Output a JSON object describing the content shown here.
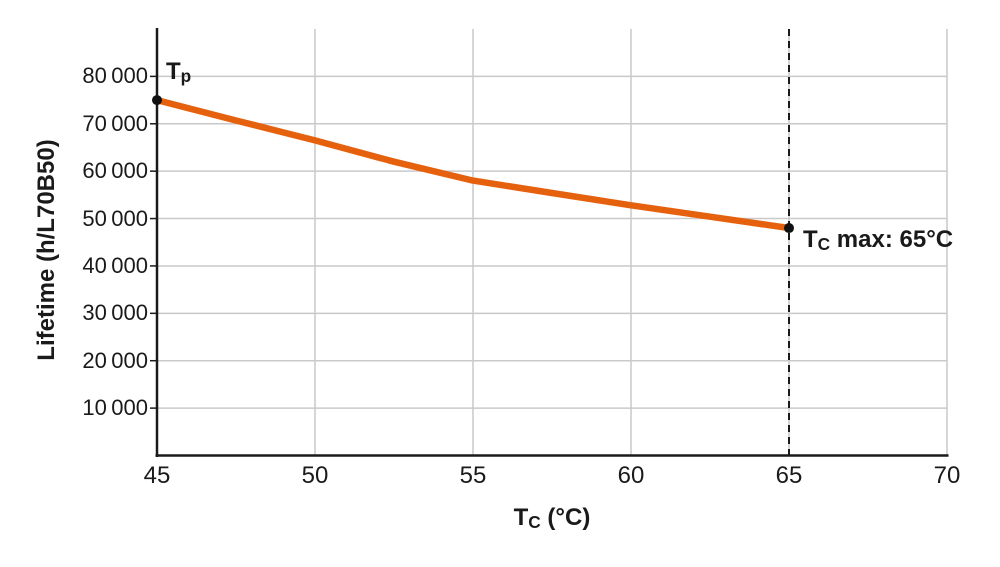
{
  "figure": {
    "background": "#ffffff"
  },
  "colors": {
    "grid": "#c9c9c9",
    "axis": "#1a1a1a",
    "text": "#1a1a1a",
    "marker": "#111111",
    "line": "#E6610E",
    "reference": "#1a1a1a"
  },
  "chart_data": {
    "type": "line",
    "title": "",
    "xlabel": {
      "pre": "T",
      "sub": "C",
      "post": " (°C)"
    },
    "ylabel": "Lifetime (h/L70B50)",
    "xlim": [
      45,
      70
    ],
    "ylim": [
      0,
      90000
    ],
    "grid": true,
    "legend": "none",
    "x_ticks": [
      {
        "value": 45,
        "label": "45"
      },
      {
        "value": 50,
        "label": "50"
      },
      {
        "value": 55,
        "label": "55"
      },
      {
        "value": 60,
        "label": "60"
      },
      {
        "value": 65,
        "label": "65"
      },
      {
        "value": 70,
        "label": "70"
      }
    ],
    "y_ticks": [
      {
        "value": 10000,
        "label": "10 000"
      },
      {
        "value": 20000,
        "label": "20 000"
      },
      {
        "value": 30000,
        "label": "30 000"
      },
      {
        "value": 40000,
        "label": "40 000"
      },
      {
        "value": 50000,
        "label": "50 000"
      },
      {
        "value": 60000,
        "label": "60 000"
      },
      {
        "value": 70000,
        "label": "70 000"
      },
      {
        "value": 80000,
        "label": "80 000"
      }
    ],
    "series": [
      {
        "name": "lifetime-vs-case-temperature",
        "color": "#E6610E",
        "stroke_width": 6.5,
        "points": [
          [
            45,
            75000
          ],
          [
            47.5,
            70700
          ],
          [
            50,
            66500
          ],
          [
            52.5,
            62000
          ],
          [
            55,
            58000
          ],
          [
            57.5,
            55400
          ],
          [
            60,
            52800
          ],
          [
            62.5,
            50400
          ],
          [
            65,
            48000
          ]
        ]
      }
    ],
    "annotations": [
      {
        "id": "tp",
        "x": 45,
        "y": 75000,
        "pre": "T",
        "sub": "p",
        "post": "",
        "dot": true
      },
      {
        "id": "tc-max",
        "x": 65,
        "y": 48000,
        "pre": "T",
        "sub": "C",
        "post": " max: 65°C",
        "dot": true
      }
    ],
    "reference_line": {
      "x": 65,
      "style": "dashed",
      "color": "#1a1a1a"
    }
  }
}
